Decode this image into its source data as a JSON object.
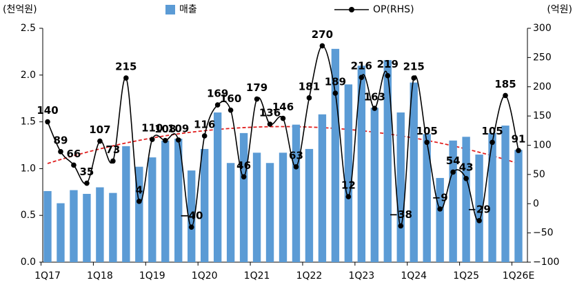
{
  "chart_data": {
    "type": "bar_line",
    "y_axis_label": "(천억원)",
    "y2_axis_label": "(억원)",
    "categories": [
      "1Q17",
      null,
      null,
      null,
      "1Q18",
      null,
      null,
      null,
      "1Q19",
      null,
      null,
      null,
      "1Q20",
      null,
      null,
      null,
      "1Q21",
      null,
      null,
      null,
      "1Q22",
      null,
      null,
      null,
      "1Q23",
      null,
      null,
      null,
      "1Q24",
      null,
      null,
      null,
      "1Q25",
      null,
      null,
      null,
      "1Q26E"
    ],
    "series": [
      {
        "name": "매출",
        "color": "#5b9bd5",
        "kind": "bar",
        "values": [
          0.76,
          0.63,
          0.77,
          0.73,
          0.8,
          0.74,
          1.24,
          1.02,
          1.12,
          1.3,
          1.32,
          0.98,
          1.21,
          1.6,
          1.06,
          1.38,
          1.17,
          1.06,
          1.17,
          1.47,
          1.21,
          1.58,
          2.28,
          1.9,
          2.1,
          1.65,
          2.16,
          1.6,
          1.92,
          1.37,
          0.9,
          1.3,
          1.34,
          1.15,
          1.38,
          1.46,
          1.2
        ]
      },
      {
        "name": "OP(RHS)",
        "color": "#000000",
        "kind": "line",
        "axis": "y2",
        "values": [
          140,
          89,
          66,
          35,
          107,
          73,
          215,
          4,
          110,
          108,
          109,
          -40,
          116,
          169,
          160,
          46,
          179,
          136,
          146,
          63,
          181,
          270,
          189,
          12,
          216,
          163,
          219,
          -38,
          215,
          105,
          -9,
          54,
          43,
          -29,
          105,
          185,
          91
        ],
        "value_labels": [
          "140",
          "89",
          "66",
          "35",
          "107",
          "73",
          "215",
          "4",
          "110",
          "108",
          "109",
          "−40",
          "116",
          "169",
          "160",
          "46",
          "179",
          "136",
          "146",
          "63",
          "181",
          "270",
          "189",
          "12",
          "216",
          "163",
          "219",
          "−38",
          "215",
          "105",
          "−9",
          "54",
          "43",
          "−29",
          "105",
          "185",
          "91"
        ]
      }
    ],
    "ylim": [
      0,
      2.5
    ],
    "yticks": [
      {
        "value": 0,
        "label": "0.0"
      },
      0.5,
      {
        "value": 1,
        "label": "1.0"
      },
      1.5,
      {
        "value": 2,
        "label": "2.0"
      },
      2.5
    ],
    "y2lim": [
      -100,
      300
    ],
    "y2ticks": [
      {
        "value": -100,
        "label": "−100"
      },
      {
        "value": -50,
        "label": "−50"
      },
      0,
      50,
      100,
      150,
      200,
      250,
      300
    ]
  }
}
